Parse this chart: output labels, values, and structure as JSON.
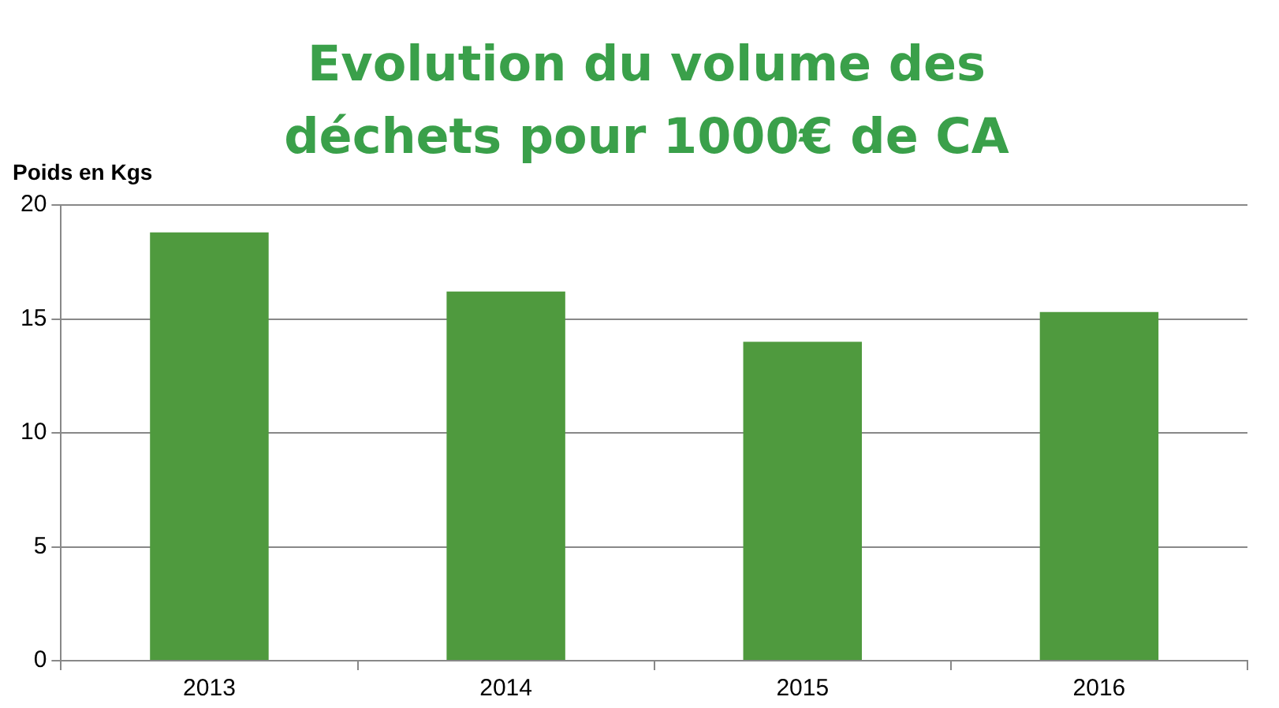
{
  "chart_data": {
    "type": "bar",
    "title": "Evolution du volume des déchets pour 1000€ de CA",
    "ylabel": "Poids en Kgs",
    "categories": [
      "2013",
      "2014",
      "2015",
      "2016"
    ],
    "series": [
      {
        "color": "#4f9a3e",
        "values": [
          18.8,
          16.2,
          14.0,
          15.3
        ]
      }
    ],
    "ylim": [
      0,
      20
    ],
    "yticks": [
      0,
      5,
      10,
      15,
      20
    ],
    "grid": "y",
    "legend": false
  }
}
